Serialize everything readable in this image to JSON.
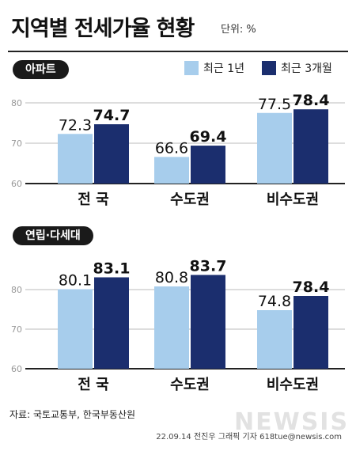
{
  "title": "지역별 전세가율 현황",
  "unit": "단위: %",
  "legend": {
    "items": [
      {
        "label": "최근 1년",
        "color": "#a7cdec"
      },
      {
        "label": "최근 3개월",
        "color": "#1b2e6e"
      }
    ]
  },
  "chart_data": [
    {
      "type": "bar",
      "title": "아파트",
      "categories": [
        "전 국",
        "수도권",
        "비수도권"
      ],
      "series": [
        {
          "name": "최근 1년",
          "values": [
            72.3,
            66.6,
            77.5
          ]
        },
        {
          "name": "최근 3개월",
          "values": [
            74.7,
            69.4,
            78.4
          ]
        }
      ],
      "ylim": [
        60,
        80
      ],
      "yticks": [
        "60",
        "70",
        "80"
      ],
      "grid": true
    },
    {
      "type": "bar",
      "title": "연립·다세대",
      "categories": [
        "전 국",
        "수도권",
        "비수도권"
      ],
      "series": [
        {
          "name": "최근 1년",
          "values": [
            80.1,
            80.8,
            74.8
          ]
        },
        {
          "name": "최근 3개월",
          "values": [
            83.1,
            83.7,
            78.4
          ]
        }
      ],
      "ylim": [
        60,
        80
      ],
      "yticks": [
        "60",
        "70",
        "80"
      ],
      "grid": true
    }
  ],
  "source": "자료: 국토교통부, 한국부동산원",
  "credit": "22.09.14 전진우 그래픽 기자 618tue@newsis.com",
  "watermark": "NEWSIS"
}
